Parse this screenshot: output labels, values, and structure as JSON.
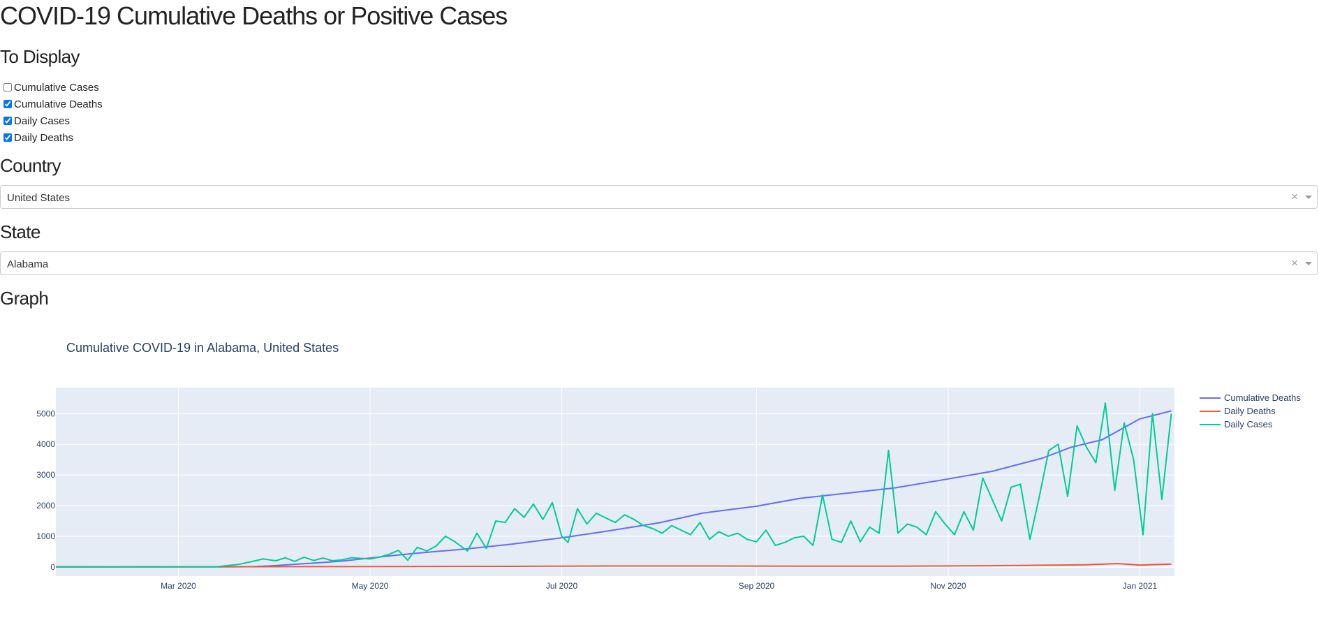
{
  "page": {
    "title": "COVID-19 Cumulative Deaths or Positive Cases",
    "display_heading": "To Display",
    "country_heading": "Country",
    "state_heading": "State",
    "graph_heading": "Graph"
  },
  "checkboxes": [
    {
      "label": "Cumulative Cases",
      "checked": false
    },
    {
      "label": "Cumulative Deaths",
      "checked": true
    },
    {
      "label": "Daily Cases",
      "checked": true
    },
    {
      "label": "Daily Deaths",
      "checked": true
    }
  ],
  "country_select": {
    "value": "United States",
    "clear": "×"
  },
  "state_select": {
    "value": "Alabama",
    "clear": "×"
  },
  "chart_data": {
    "type": "line",
    "title": "Cumulative COVID-19 in Alabama, United States",
    "xlabel": "",
    "ylabel": "",
    "xlim": [
      "2020-01-22",
      "2021-01-12"
    ],
    "ylim": [
      -300,
      5850
    ],
    "y_ticks": [
      0,
      1000,
      2000,
      3000,
      4000,
      5000
    ],
    "x_ticks": [
      {
        "date": "2020-03-01",
        "label": "Mar 2020"
      },
      {
        "date": "2020-05-01",
        "label": "May 2020"
      },
      {
        "date": "2020-07-01",
        "label": "Jul 2020"
      },
      {
        "date": "2020-09-01",
        "label": "Sep 2020"
      },
      {
        "date": "2020-11-01",
        "label": "Nov 2020"
      },
      {
        "date": "2021-01-01",
        "label": "Jan 2021"
      }
    ],
    "grid": true,
    "legend_position": "top-right",
    "plot_background": "#e5ecf6",
    "series": [
      {
        "name": "Cumulative Deaths",
        "color": "#636efa",
        "x": [
          "2020-01-22",
          "2020-03-13",
          "2020-03-25",
          "2020-04-01",
          "2020-04-08",
          "2020-04-15",
          "2020-04-22",
          "2020-05-01",
          "2020-05-08",
          "2020-05-15",
          "2020-06-01",
          "2020-06-15",
          "2020-07-01",
          "2020-07-15",
          "2020-08-01",
          "2020-08-15",
          "2020-09-01",
          "2020-09-15",
          "2020-10-01",
          "2020-10-15",
          "2020-11-01",
          "2020-11-15",
          "2020-12-01",
          "2020-12-10",
          "2020-12-20",
          "2021-01-01",
          "2021-01-11"
        ],
        "y": [
          0,
          0,
          10,
          45,
          95,
          140,
          190,
          290,
          370,
          440,
          590,
          740,
          950,
          1160,
          1440,
          1760,
          1980,
          2240,
          2420,
          2580,
          2870,
          3120,
          3550,
          3900,
          4150,
          4830,
          5090
        ]
      },
      {
        "name": "Daily Deaths",
        "color": "#ef553b",
        "x": [
          "2020-01-22",
          "2020-03-20",
          "2020-04-15",
          "2020-05-15",
          "2020-06-15",
          "2020-07-15",
          "2020-08-15",
          "2020-09-15",
          "2020-10-15",
          "2020-11-15",
          "2020-12-01",
          "2020-12-15",
          "2020-12-25",
          "2021-01-01",
          "2021-01-11"
        ],
        "y": [
          0,
          5,
          10,
          15,
          20,
          30,
          30,
          25,
          25,
          40,
          55,
          70,
          110,
          60,
          95
        ]
      },
      {
        "name": "Daily Cases",
        "color": "#00cc96",
        "x": [
          "2020-01-22",
          "2020-03-13",
          "2020-03-20",
          "2020-03-25",
          "2020-03-28",
          "2020-04-01",
          "2020-04-04",
          "2020-04-07",
          "2020-04-10",
          "2020-04-13",
          "2020-04-16",
          "2020-04-19",
          "2020-04-22",
          "2020-04-25",
          "2020-04-28",
          "2020-05-01",
          "2020-05-04",
          "2020-05-07",
          "2020-05-10",
          "2020-05-13",
          "2020-05-16",
          "2020-05-19",
          "2020-05-22",
          "2020-05-25",
          "2020-05-28",
          "2020-06-01",
          "2020-06-04",
          "2020-06-07",
          "2020-06-10",
          "2020-06-13",
          "2020-06-16",
          "2020-06-19",
          "2020-06-22",
          "2020-06-25",
          "2020-06-28",
          "2020-07-01",
          "2020-07-03",
          "2020-07-06",
          "2020-07-09",
          "2020-07-12",
          "2020-07-15",
          "2020-07-18",
          "2020-07-21",
          "2020-07-24",
          "2020-07-27",
          "2020-07-30",
          "2020-08-02",
          "2020-08-05",
          "2020-08-08",
          "2020-08-11",
          "2020-08-14",
          "2020-08-17",
          "2020-08-20",
          "2020-08-23",
          "2020-08-26",
          "2020-08-29",
          "2020-09-01",
          "2020-09-04",
          "2020-09-07",
          "2020-09-10",
          "2020-09-13",
          "2020-09-16",
          "2020-09-19",
          "2020-09-22",
          "2020-09-25",
          "2020-09-28",
          "2020-10-01",
          "2020-10-04",
          "2020-10-07",
          "2020-10-10",
          "2020-10-13",
          "2020-10-16",
          "2020-10-19",
          "2020-10-22",
          "2020-10-25",
          "2020-10-28",
          "2020-10-31",
          "2020-11-03",
          "2020-11-06",
          "2020-11-09",
          "2020-11-12",
          "2020-11-15",
          "2020-11-18",
          "2020-11-21",
          "2020-11-24",
          "2020-11-27",
          "2020-11-30",
          "2020-12-03",
          "2020-12-06",
          "2020-12-09",
          "2020-12-12",
          "2020-12-15",
          "2020-12-18",
          "2020-12-21",
          "2020-12-24",
          "2020-12-27",
          "2020-12-30",
          "2021-01-02",
          "2021-01-05",
          "2021-01-08",
          "2021-01-11"
        ],
        "y": [
          0,
          5,
          80,
          190,
          260,
          200,
          300,
          180,
          320,
          210,
          290,
          200,
          230,
          300,
          280,
          260,
          320,
          410,
          540,
          220,
          640,
          520,
          680,
          1000,
          820,
          520,
          1100,
          600,
          1500,
          1450,
          1900,
          1620,
          2050,
          1550,
          2100,
          1000,
          800,
          1900,
          1400,
          1750,
          1600,
          1450,
          1700,
          1550,
          1350,
          1250,
          1100,
          1350,
          1200,
          1050,
          1450,
          900,
          1150,
          1000,
          1100,
          900,
          820,
          1200,
          700,
          800,
          950,
          1000,
          700,
          2350,
          900,
          800,
          1500,
          820,
          1300,
          1100,
          3800,
          1100,
          1400,
          1300,
          1050,
          1800,
          1400,
          1050,
          1800,
          1200,
          2900,
          2200,
          1500,
          2600,
          2700,
          900,
          2300,
          3800,
          4000,
          2300,
          4600,
          3900,
          3400,
          5350,
          2500,
          4700,
          3500,
          1050,
          5000,
          2200,
          5000
        ]
      }
    ]
  }
}
